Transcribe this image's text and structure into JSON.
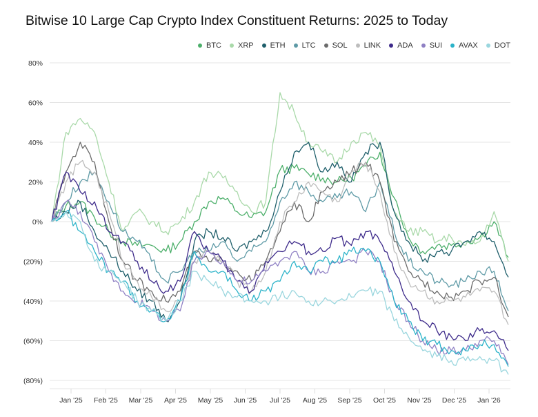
{
  "chart_data": {
    "type": "line",
    "title": "Bitwise 10 Large Cap Crypto Index Constituent Returns: 2025 to Today",
    "xlabel": "",
    "ylabel": "",
    "ylim": [
      -80,
      80
    ],
    "y_ticks": [
      "80%",
      "60%",
      "40%",
      "20%",
      "0%",
      "(20%)",
      "(40%)",
      "(60%)",
      "(80%)"
    ],
    "y_tick_values": [
      80,
      60,
      40,
      20,
      0,
      -20,
      -40,
      -60,
      -80
    ],
    "x_ticks": [
      "Jan '25",
      "Feb '25",
      "Mar '25",
      "Apr '25",
      "May '25",
      "Jun '25",
      "Jul '25",
      "Aug '25",
      "Sep '25",
      "Oct '25",
      "Nov '25",
      "Dec '25",
      "Jan '26"
    ],
    "x_days_range": [
      0,
      394
    ],
    "grid": true,
    "legend_position": "top-right",
    "series": [
      {
        "name": "BTC",
        "color": "#4caf6a",
        "values": [
          0,
          8,
          10,
          2,
          -5,
          -10,
          -12,
          -12,
          -15,
          -10,
          0,
          10,
          12,
          5,
          2,
          5,
          26,
          27,
          24,
          22,
          20,
          22,
          28,
          35,
          12,
          -8,
          -15,
          -12,
          -12,
          -10,
          -8,
          0,
          -18
        ]
      },
      {
        "name": "XRP",
        "color": "#a9d9a9",
        "values": [
          0,
          45,
          52,
          45,
          20,
          -5,
          5,
          0,
          -5,
          0,
          10,
          25,
          22,
          15,
          5,
          10,
          65,
          55,
          40,
          35,
          30,
          40,
          45,
          38,
          5,
          -5,
          -5,
          -10,
          -8,
          -12,
          -10,
          5,
          -20
        ]
      },
      {
        "name": "ETH",
        "color": "#1f5f6b",
        "values": [
          0,
          5,
          10,
          -5,
          -15,
          -25,
          -35,
          -40,
          -50,
          -40,
          -10,
          -5,
          -8,
          -15,
          -10,
          -5,
          15,
          35,
          40,
          25,
          30,
          20,
          35,
          40,
          5,
          -10,
          -20,
          -15,
          -15,
          -10,
          -5,
          -10,
          -28
        ]
      },
      {
        "name": "LTC",
        "color": "#5e9aa6",
        "values": [
          0,
          10,
          20,
          25,
          10,
          -5,
          -10,
          -20,
          -30,
          -25,
          -15,
          -15,
          -10,
          -20,
          -15,
          -10,
          10,
          20,
          15,
          10,
          12,
          15,
          5,
          20,
          -5,
          -20,
          -25,
          -30,
          -32,
          -30,
          -25,
          -25,
          -45
        ]
      },
      {
        "name": "SOL",
        "color": "#6b6b6b",
        "values": [
          0,
          25,
          40,
          30,
          0,
          -20,
          -30,
          -35,
          -40,
          -35,
          -15,
          -20,
          -20,
          -25,
          -30,
          -20,
          -5,
          10,
          0,
          15,
          20,
          25,
          30,
          20,
          -10,
          -25,
          -30,
          -35,
          -38,
          -35,
          -30,
          -28,
          -48
        ]
      },
      {
        "name": "LINK",
        "color": "#bdbdbd",
        "values": [
          0,
          20,
          30,
          25,
          5,
          -20,
          -30,
          -38,
          -45,
          -40,
          -20,
          -15,
          -20,
          -30,
          -35,
          -25,
          0,
          10,
          20,
          15,
          10,
          25,
          30,
          15,
          -15,
          -30,
          -35,
          -40,
          -40,
          -38,
          -35,
          -35,
          -52
        ]
      },
      {
        "name": "ADA",
        "color": "#3d2a8a",
        "values": [
          0,
          25,
          15,
          10,
          -5,
          -10,
          -20,
          -30,
          -35,
          -30,
          -5,
          -15,
          -20,
          -30,
          -35,
          -20,
          -15,
          -10,
          -15,
          -15,
          -8,
          -12,
          -5,
          -10,
          -25,
          -40,
          -50,
          -55,
          -58,
          -60,
          -55,
          -55,
          -65
        ]
      },
      {
        "name": "SUI",
        "color": "#8f80c4",
        "values": [
          0,
          10,
          5,
          -10,
          -25,
          -35,
          -40,
          -45,
          -50,
          -45,
          -20,
          -15,
          -20,
          -30,
          -30,
          -25,
          -20,
          -15,
          -25,
          -25,
          -20,
          -20,
          -15,
          -20,
          -40,
          -50,
          -60,
          -65,
          -65,
          -65,
          -60,
          -60,
          -72
        ]
      },
      {
        "name": "AVAX",
        "color": "#2bb3c9",
        "values": [
          0,
          5,
          -5,
          -15,
          -25,
          -30,
          -40,
          -45,
          -50,
          -40,
          -15,
          -25,
          -25,
          -35,
          -40,
          -35,
          -30,
          -20,
          -25,
          -20,
          -20,
          -15,
          -15,
          -20,
          -40,
          -50,
          -60,
          -62,
          -65,
          -65,
          -62,
          -62,
          -73
        ]
      },
      {
        "name": "DOT",
        "color": "#9ad6de",
        "values": [
          0,
          5,
          0,
          -20,
          -25,
          -30,
          -40,
          -45,
          -50,
          -40,
          -25,
          -30,
          -35,
          -38,
          -40,
          -40,
          -38,
          -35,
          -40,
          -40,
          -40,
          -38,
          -35,
          -35,
          -50,
          -58,
          -65,
          -68,
          -70,
          -70,
          -68,
          -70,
          -77
        ]
      }
    ]
  }
}
